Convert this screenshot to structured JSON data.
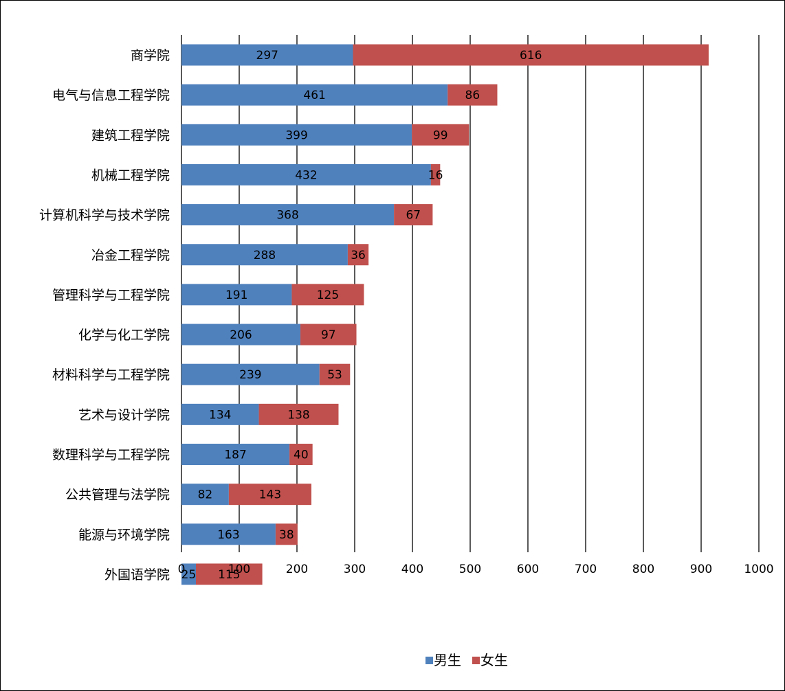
{
  "chart_data": {
    "type": "bar",
    "orientation": "horizontal",
    "stacked": true,
    "categories": [
      "商学院",
      "电气与信息工程学院",
      "建筑工程学院",
      "机械工程学院",
      "计算机科学与技术学院",
      "冶金工程学院",
      "管理科学与工程学院",
      "化学与化工学院",
      "材料科学与工程学院",
      "艺术与设计学院",
      "数理科学与工程学院",
      "公共管理与法学院",
      "能源与环境学院",
      "外国语学院"
    ],
    "series": [
      {
        "name": "男生",
        "color": "#4F81BD",
        "values": [
          297,
          461,
          399,
          432,
          368,
          288,
          191,
          206,
          239,
          134,
          187,
          82,
          163,
          25
        ]
      },
      {
        "name": "女生",
        "color": "#C0504D",
        "values": [
          616,
          86,
          99,
          16,
          67,
          36,
          125,
          97,
          53,
          138,
          40,
          143,
          38,
          115
        ]
      }
    ],
    "xlim": [
      0,
      1000
    ],
    "xticks": [
      0,
      100,
      200,
      300,
      400,
      500,
      600,
      700,
      800,
      900,
      1000
    ],
    "grid": "vertical",
    "legend_position": "bottom",
    "data_labels": true
  }
}
